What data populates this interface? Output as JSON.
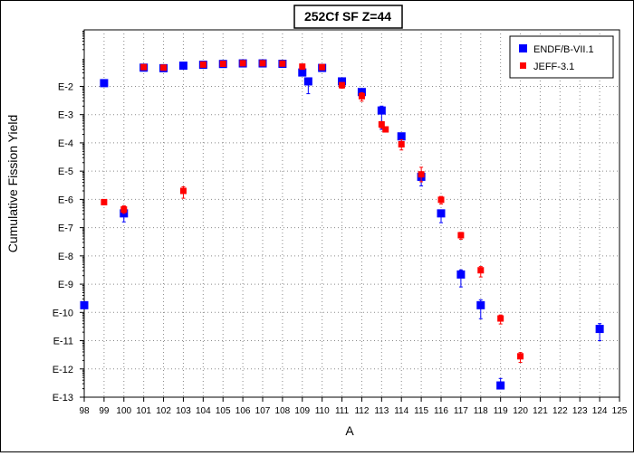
{
  "chart_data": {
    "type": "scatter",
    "title": "252Cf SF Z=44",
    "xlabel": "A",
    "ylabel": "Cumulative Fission Yield",
    "xlim": [
      98,
      125
    ],
    "ylim": [
      1e-13,
      1
    ],
    "y_scale": "log",
    "grid": true,
    "legend_position": "top-right",
    "x_tick_labels": [
      "98",
      "99",
      "100",
      "101",
      "102",
      "103",
      "104",
      "105",
      "106",
      "107",
      "108",
      "109",
      "110",
      "111",
      "112",
      "113",
      "114",
      "115",
      "116",
      "117",
      "118",
      "119",
      "120",
      "121",
      "122",
      "123",
      "124",
      "125"
    ],
    "y_tick_labels": [
      {
        "label": "E-2",
        "exp": -2
      },
      {
        "label": "E-3",
        "exp": -3
      },
      {
        "label": "E-4",
        "exp": -4
      },
      {
        "label": "E-5",
        "exp": -5
      },
      {
        "label": "E-6",
        "exp": -6
      },
      {
        "label": "E-7",
        "exp": -7
      },
      {
        "label": "E-8",
        "exp": -8
      },
      {
        "label": "E-9",
        "exp": -9
      },
      {
        "label": "E-10",
        "exp": -10
      },
      {
        "label": "E-11",
        "exp": -11
      },
      {
        "label": "E-12",
        "exp": -12
      },
      {
        "label": "E-13",
        "exp": -13
      }
    ],
    "series": [
      {
        "name": "ENDF/B-VII.1",
        "color": "#0000ff",
        "marker": "square",
        "x": [
          98,
          99,
          100,
          101,
          102,
          103,
          104,
          105,
          106,
          107,
          108,
          109,
          109.3,
          110,
          111,
          112,
          113,
          114,
          115,
          116,
          117,
          118,
          119,
          124
        ],
        "y": [
          1.8e-10,
          0.013,
          3.2e-07,
          0.046,
          0.044,
          0.054,
          0.058,
          0.062,
          0.065,
          0.065,
          0.063,
          0.031,
          0.015,
          0.045,
          0.015,
          0.0063,
          0.0014,
          0.00017,
          6.3e-06,
          3.2e-07,
          2.2e-09,
          1.8e-10,
          2.6e-13,
          2.6e-11
        ],
        "err_up": [
          0,
          0,
          2.5e-07,
          0,
          0,
          0,
          0,
          0,
          0,
          0,
          0,
          0.005,
          0.004,
          0,
          0,
          0.002,
          0.0006,
          5e-05,
          2e-06,
          1e-07,
          1e-09,
          1e-10,
          2e-13,
          1.4e-11
        ],
        "err_down": [
          0,
          0,
          1.6e-07,
          0,
          0,
          0,
          0,
          0,
          0,
          0,
          0,
          0.003,
          0.0095,
          0.006,
          0,
          0.0025,
          0.0011,
          7e-05,
          3.3e-06,
          1.7e-07,
          1.4e-09,
          1.2e-10,
          0,
          1.6e-11
        ]
      },
      {
        "name": "JEFF-3.1",
        "color": "#ff0000",
        "marker": "square",
        "x": [
          99,
          100,
          101,
          102,
          103,
          104,
          105,
          106,
          107,
          108,
          109,
          110,
          111,
          112,
          113,
          113.2,
          114,
          115,
          116,
          117,
          118,
          119,
          120
        ],
        "y": [
          8e-07,
          4.4e-07,
          0.048,
          0.046,
          2e-06,
          0.059,
          0.063,
          0.066,
          0.066,
          0.064,
          0.05,
          0.048,
          0.011,
          0.0045,
          0.00045,
          0.0003,
          8.91e-05,
          7.7e-06,
          9.7e-07,
          5.4e-08,
          3.1e-09,
          6.1e-11,
          2.8e-12
        ],
        "err_up": [
          0,
          1.5e-07,
          0,
          0,
          8e-07,
          0,
          0,
          0,
          0,
          0,
          0,
          0,
          0.0025,
          0.0015,
          0.00012,
          0,
          4e-05,
          6e-06,
          3e-07,
          1.4e-08,
          1.1e-09,
          2e-11,
          1e-12
        ],
        "err_down": [
          0,
          1.2e-07,
          0,
          0,
          9e-07,
          0,
          0,
          0,
          0,
          0,
          0,
          0,
          0.0024,
          0.0015,
          0.00012,
          0,
          3.3e-05,
          3.5e-06,
          2.8e-07,
          1.5e-08,
          1.3e-09,
          2.2e-11,
          1.1e-12
        ]
      }
    ]
  }
}
